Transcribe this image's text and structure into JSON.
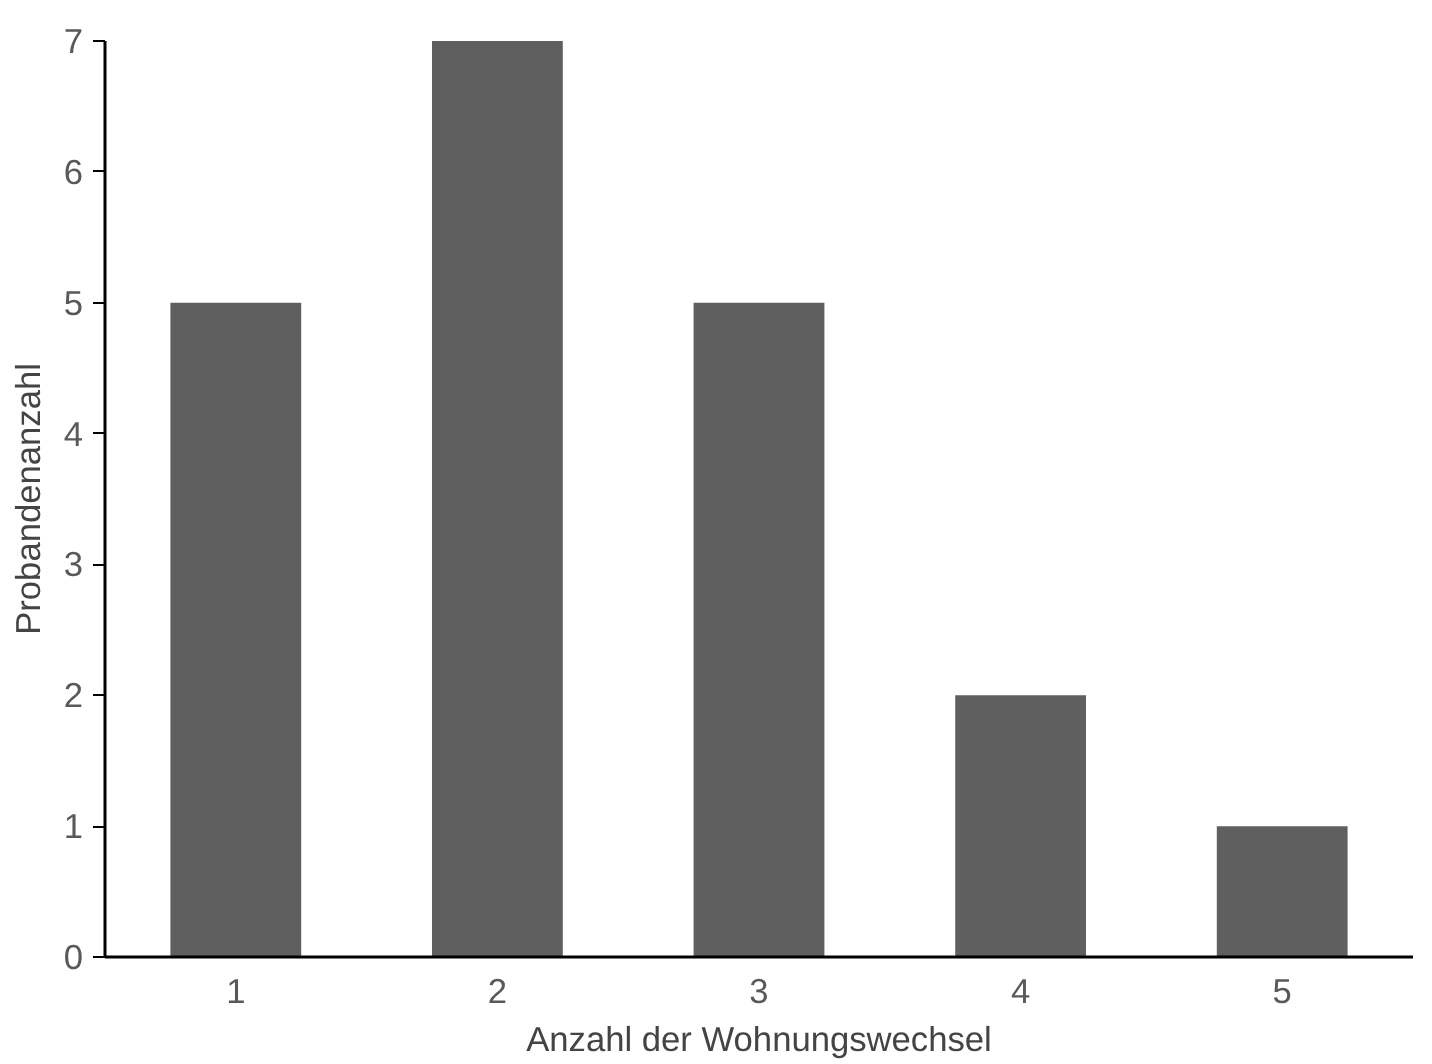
{
  "chart_data": {
    "type": "bar",
    "xlabel": "Anzahl der Wohnungswechsel",
    "ylabel": "Probandenanzahl",
    "categories": [
      "1",
      "2",
      "3",
      "4",
      "5"
    ],
    "values": [
      5,
      7,
      5,
      2,
      1
    ],
    "color": "#5f5f5f",
    "ylim": [
      0,
      7
    ],
    "yticks": [
      0,
      1,
      2,
      3,
      4,
      5,
      6,
      7
    ],
    "grid": false
  }
}
